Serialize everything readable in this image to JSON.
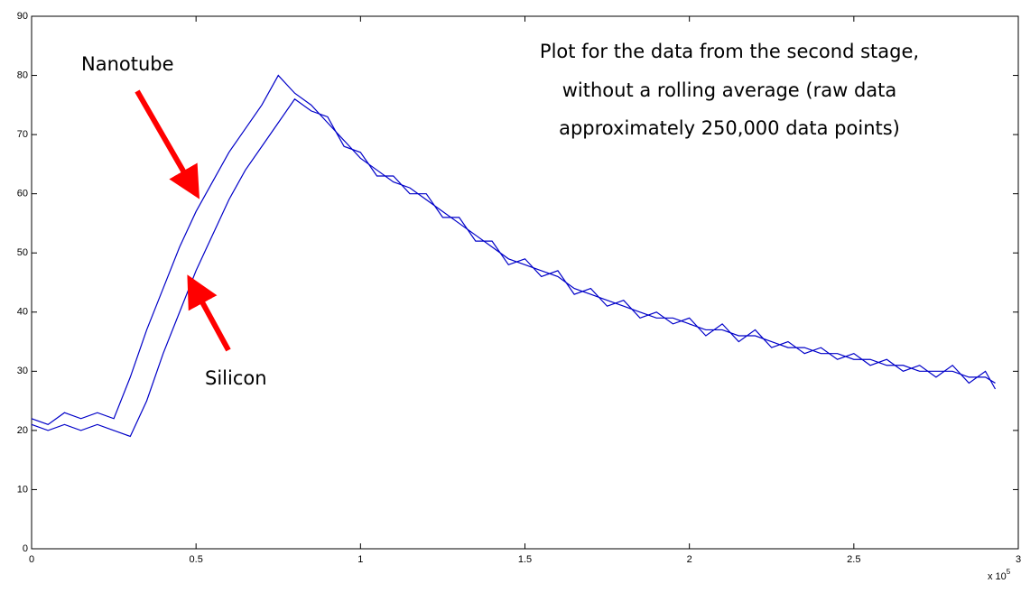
{
  "chart_data": {
    "type": "line",
    "x": [
      0,
      0.05,
      0.1,
      0.15,
      0.2,
      0.25,
      0.3,
      0.35,
      0.4,
      0.45,
      0.5,
      0.55,
      0.6,
      0.65,
      0.7,
      0.75,
      0.8,
      0.85,
      0.9,
      0.95,
      1.0,
      1.05,
      1.1,
      1.15,
      1.2,
      1.25,
      1.3,
      1.35,
      1.4,
      1.45,
      1.5,
      1.55,
      1.6,
      1.65,
      1.7,
      1.75,
      1.8,
      1.85,
      1.9,
      1.95,
      2.0,
      2.05,
      2.1,
      2.15,
      2.2,
      2.25,
      2.3,
      2.35,
      2.4,
      2.45,
      2.5,
      2.55,
      2.6,
      2.65,
      2.7,
      2.75,
      2.8,
      2.85,
      2.9,
      2.93
    ],
    "series": [
      {
        "color": "#0000c8",
        "values": [
          22,
          21,
          23,
          22,
          23,
          22,
          29,
          37,
          44,
          51,
          57,
          62,
          67,
          71,
          75,
          80,
          77,
          75,
          72,
          69,
          66,
          64,
          62,
          61,
          59,
          57,
          55,
          53,
          51,
          49,
          48,
          47,
          46,
          44,
          43,
          42,
          41,
          40,
          39,
          39,
          38,
          37,
          37,
          36,
          36,
          35,
          34,
          34,
          33,
          33,
          32,
          32,
          31,
          31,
          30,
          30,
          30,
          29,
          29,
          28
        ]
      },
      {
        "color": "#0000c8",
        "values": [
          21,
          20,
          21,
          20,
          21,
          20,
          19,
          25,
          33,
          40,
          47,
          53,
          59,
          64,
          68,
          72,
          76,
          74,
          73,
          68,
          67,
          63,
          63,
          60,
          60,
          56,
          56,
          52,
          52,
          48,
          49,
          46,
          47,
          43,
          44,
          41,
          42,
          39,
          40,
          38,
          39,
          36,
          38,
          35,
          37,
          34,
          35,
          33,
          34,
          32,
          33,
          31,
          32,
          30,
          31,
          29,
          31,
          28,
          30,
          27
        ]
      }
    ],
    "xlim": [
      0,
      3
    ],
    "ylim": [
      0,
      90
    ],
    "xticks": [
      0,
      0.5,
      1,
      1.5,
      2,
      2.5,
      3
    ],
    "yticks": [
      0,
      10,
      20,
      30,
      40,
      50,
      60,
      70,
      80,
      90
    ],
    "x_multiplier": {
      "base": "x 10",
      "exponent": "5"
    },
    "annotations": {
      "note": [
        "Plot for the data from the second stage,",
        "without a rolling average (raw data",
        "approximately 250,000 data points)"
      ],
      "nanotube": "Nanotube",
      "silicon": "Silicon"
    }
  }
}
